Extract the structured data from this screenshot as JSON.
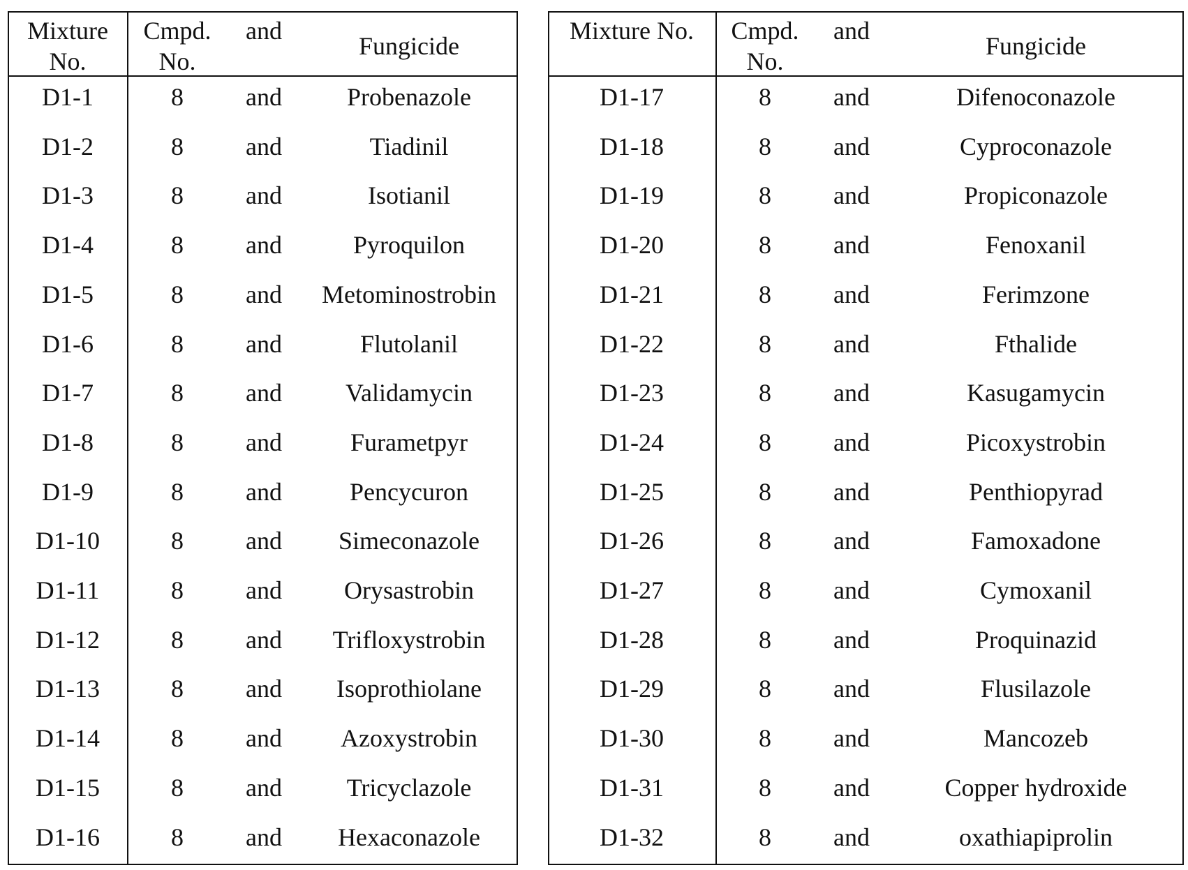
{
  "tables": [
    {
      "header": [
        "Mixture No.",
        "Cmpd. No.",
        "and",
        "Fungicide"
      ],
      "rows": [
        [
          "D1-1",
          "8",
          "and",
          "Probenazole"
        ],
        [
          "D1-2",
          "8",
          "and",
          "Tiadinil"
        ],
        [
          "D1-3",
          "8",
          "and",
          "Isotianil"
        ],
        [
          "D1-4",
          "8",
          "and",
          "Pyroquilon"
        ],
        [
          "D1-5",
          "8",
          "and",
          "Metominostrobin"
        ],
        [
          "D1-6",
          "8",
          "and",
          "Flutolanil"
        ],
        [
          "D1-7",
          "8",
          "and",
          "Validamycin"
        ],
        [
          "D1-8",
          "8",
          "and",
          "Furametpyr"
        ],
        [
          "D1-9",
          "8",
          "and",
          "Pencycuron"
        ],
        [
          "D1-10",
          "8",
          "and",
          "Simeconazole"
        ],
        [
          "D1-11",
          "8",
          "and",
          "Orysastrobin"
        ],
        [
          "D1-12",
          "8",
          "and",
          "Trifloxystrobin"
        ],
        [
          "D1-13",
          "8",
          "and",
          "Isoprothiolane"
        ],
        [
          "D1-14",
          "8",
          "and",
          "Azoxystrobin"
        ],
        [
          "D1-15",
          "8",
          "and",
          "Tricyclazole"
        ],
        [
          "D1-16",
          "8",
          "and",
          "Hexaconazole"
        ]
      ]
    },
    {
      "header": [
        "Mixture No.",
        "Cmpd. No.",
        "and",
        "Fungicide"
      ],
      "rows": [
        [
          "D1-17",
          "8",
          "and",
          "Difenoconazole"
        ],
        [
          "D1-18",
          "8",
          "and",
          "Cyproconazole"
        ],
        [
          "D1-19",
          "8",
          "and",
          "Propiconazole"
        ],
        [
          "D1-20",
          "8",
          "and",
          "Fenoxanil"
        ],
        [
          "D1-21",
          "8",
          "and",
          "Ferimzone"
        ],
        [
          "D1-22",
          "8",
          "and",
          "Fthalide"
        ],
        [
          "D1-23",
          "8",
          "and",
          "Kasugamycin"
        ],
        [
          "D1-24",
          "8",
          "and",
          "Picoxystrobin"
        ],
        [
          "D1-25",
          "8",
          "and",
          "Penthiopyrad"
        ],
        [
          "D1-26",
          "8",
          "and",
          "Famoxadone"
        ],
        [
          "D1-27",
          "8",
          "and",
          "Cymoxanil"
        ],
        [
          "D1-28",
          "8",
          "and",
          "Proquinazid"
        ],
        [
          "D1-29",
          "8",
          "and",
          "Flusilazole"
        ],
        [
          "D1-30",
          "8",
          "and",
          "Mancozeb"
        ],
        [
          "D1-31",
          "8",
          "and",
          "Copper hydroxide"
        ],
        [
          "D1-32",
          "8",
          "and",
          "oxathiapiprolin"
        ]
      ]
    }
  ]
}
